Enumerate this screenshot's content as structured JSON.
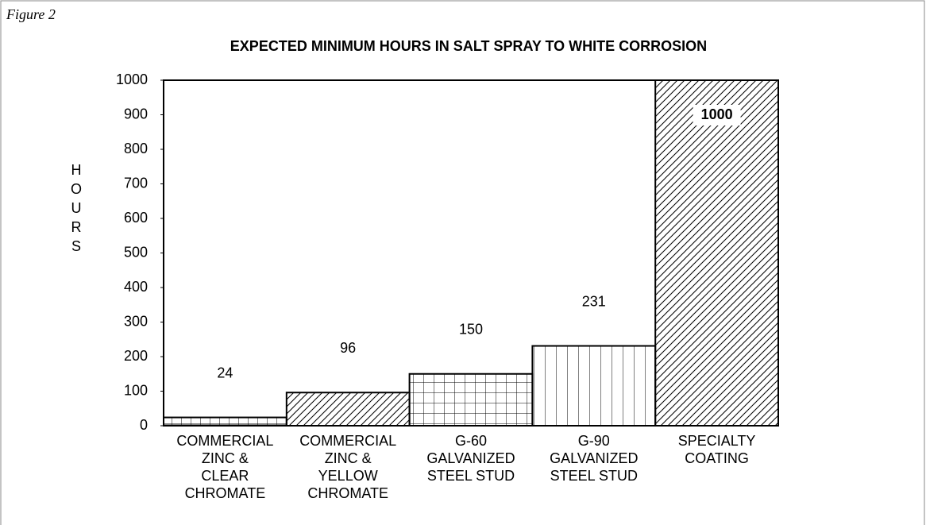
{
  "figure_label": "Figure 2",
  "chart_data": {
    "type": "bar",
    "title": "EXPECTED MINIMUM HOURS IN SALT SPRAY TO WHITE CORROSION",
    "y_label": "HOURS",
    "categories": [
      [
        "COMMERCIAL",
        "ZINC &",
        "CLEAR",
        "CHROMATE"
      ],
      [
        "COMMERCIAL",
        "ZINC &",
        "YELLOW",
        "CHROMATE"
      ],
      [
        "G-60",
        "GALVANIZED",
        "STEEL STUD"
      ],
      [
        "G-90",
        "GALVANIZED",
        "STEEL STUD"
      ],
      [
        "SPECIALTY",
        "COATING"
      ]
    ],
    "values": [
      24,
      96,
      150,
      231,
      1000
    ],
    "ylim": [
      0,
      1000
    ],
    "yticks": [
      0,
      100,
      200,
      300,
      400,
      500,
      600,
      700,
      800,
      900,
      1000
    ],
    "color": "#000000",
    "grid": false
  }
}
